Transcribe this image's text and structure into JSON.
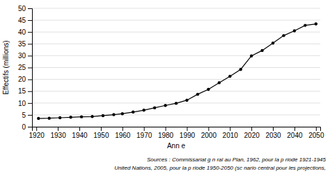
{
  "chart_data": {
    "type": "line",
    "xlabel": "Ann e",
    "ylabel": "Effectifs (millions)",
    "x": [
      1921,
      1926,
      1931,
      1936,
      1941,
      1946,
      1951,
      1956,
      1960,
      1965,
      1970,
      1975,
      1980,
      1985,
      1990,
      1995,
      2000,
      2005,
      2010,
      2015,
      2020,
      2025,
      2030,
      2035,
      2040,
      2045,
      2050
    ],
    "values": [
      3.5,
      3.6,
      3.8,
      4.0,
      4.2,
      4.3,
      4.7,
      5.1,
      5.5,
      6.2,
      7.0,
      8.0,
      9.0,
      9.9,
      11.2,
      13.7,
      15.8,
      18.6,
      21.3,
      24.2,
      29.9,
      32.2,
      35.3,
      38.5,
      40.5,
      42.8,
      43.4
    ],
    "color": "#000000",
    "marker": "circle",
    "xlim": [
      1918,
      2052
    ],
    "ylim": [
      0,
      50
    ],
    "xticks": [
      1920,
      1930,
      1940,
      1950,
      1960,
      1970,
      1980,
      1990,
      2000,
      2010,
      2020,
      2030,
      2040,
      2050
    ],
    "yticks": [
      0,
      5,
      10,
      15,
      20,
      25,
      30,
      35,
      40,
      45,
      50
    ],
    "grid": true,
    "annotations": [
      "Sources : Commissariat g  n  ral au Plan, 1962, pour la p  riode 1921-1945",
      "United Nations, 2005, pour la p  riode 1950-2050 (sc  nario central pour les projections,"
    ]
  }
}
